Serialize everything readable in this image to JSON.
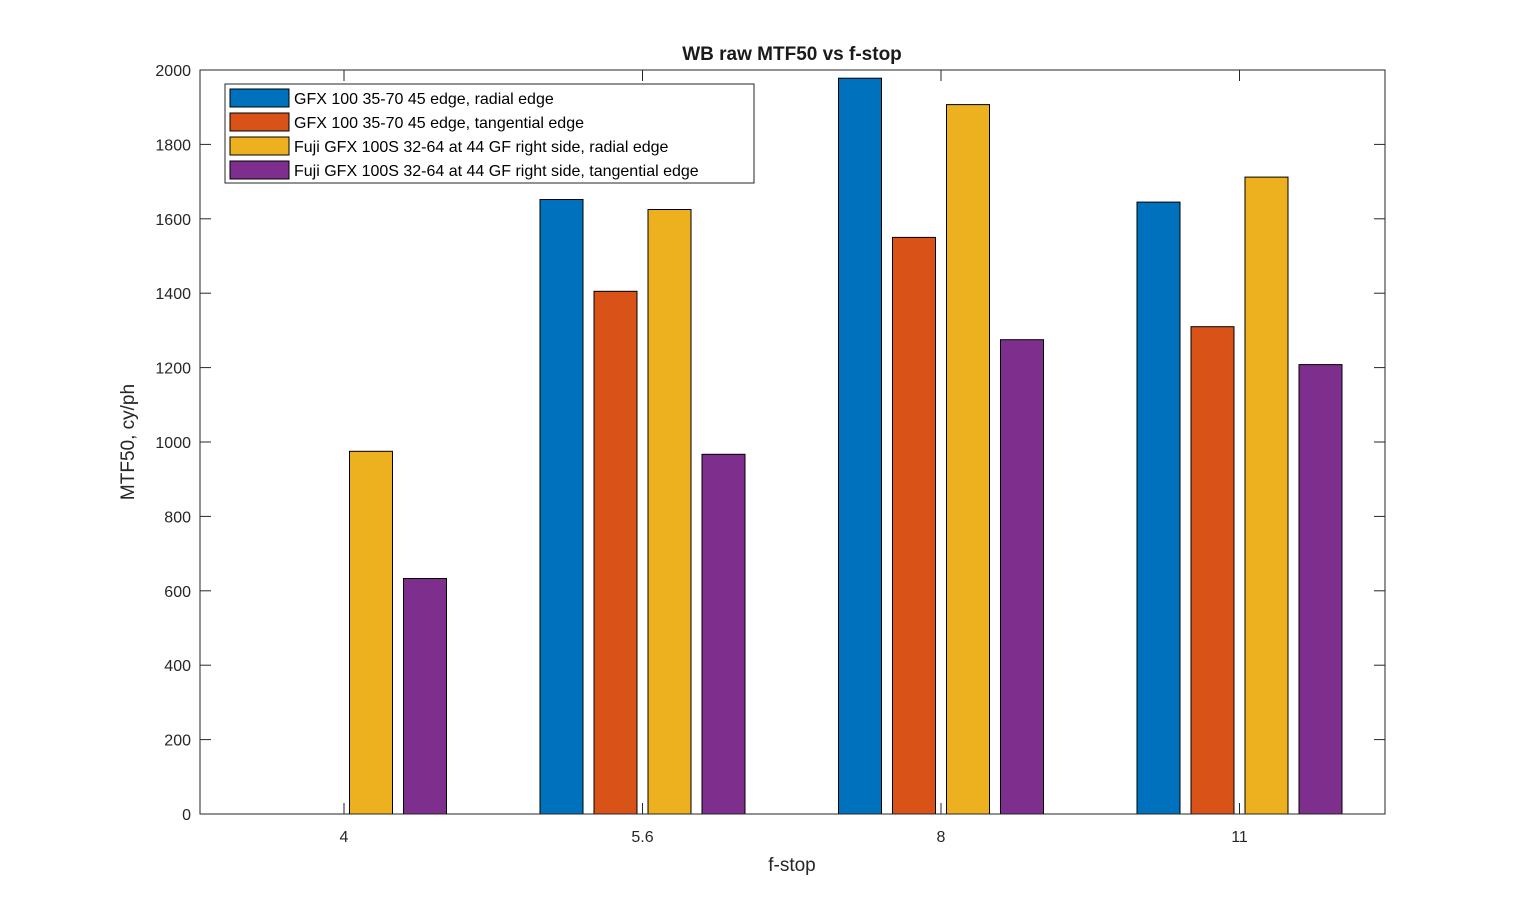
{
  "chart_data": {
    "type": "bar",
    "title": "WB raw MTF50 vs f-stop",
    "xlabel": "f-stop",
    "ylabel": "MTF50, cy/ph",
    "categories": [
      "4",
      "5.6",
      "8",
      "11"
    ],
    "ylim": [
      0,
      2000
    ],
    "yticks": [
      0,
      200,
      400,
      600,
      800,
      1000,
      1200,
      1400,
      1600,
      1800,
      2000
    ],
    "grid": false,
    "legend_position": "top-left",
    "series": [
      {
        "name": "GFX 100 35-70 45 edge, radial edge",
        "color": "#0072bd",
        "values": [
          null,
          1652,
          1978,
          1645
        ]
      },
      {
        "name": "GFX 100 35-70 45 edge, tangential edge",
        "color": "#d95319",
        "values": [
          null,
          1405,
          1550,
          1310
        ]
      },
      {
        "name": "Fuji GFX 100S 32-64 at 44 GF right side, radial edge",
        "color": "#edb120",
        "values": [
          975,
          1625,
          1907,
          1712
        ]
      },
      {
        "name": "Fuji GFX 100S 32-64 at 44 GF right side, tangential edge",
        "color": "#7e2f8e",
        "values": [
          633,
          967,
          1275,
          1208
        ]
      }
    ]
  }
}
